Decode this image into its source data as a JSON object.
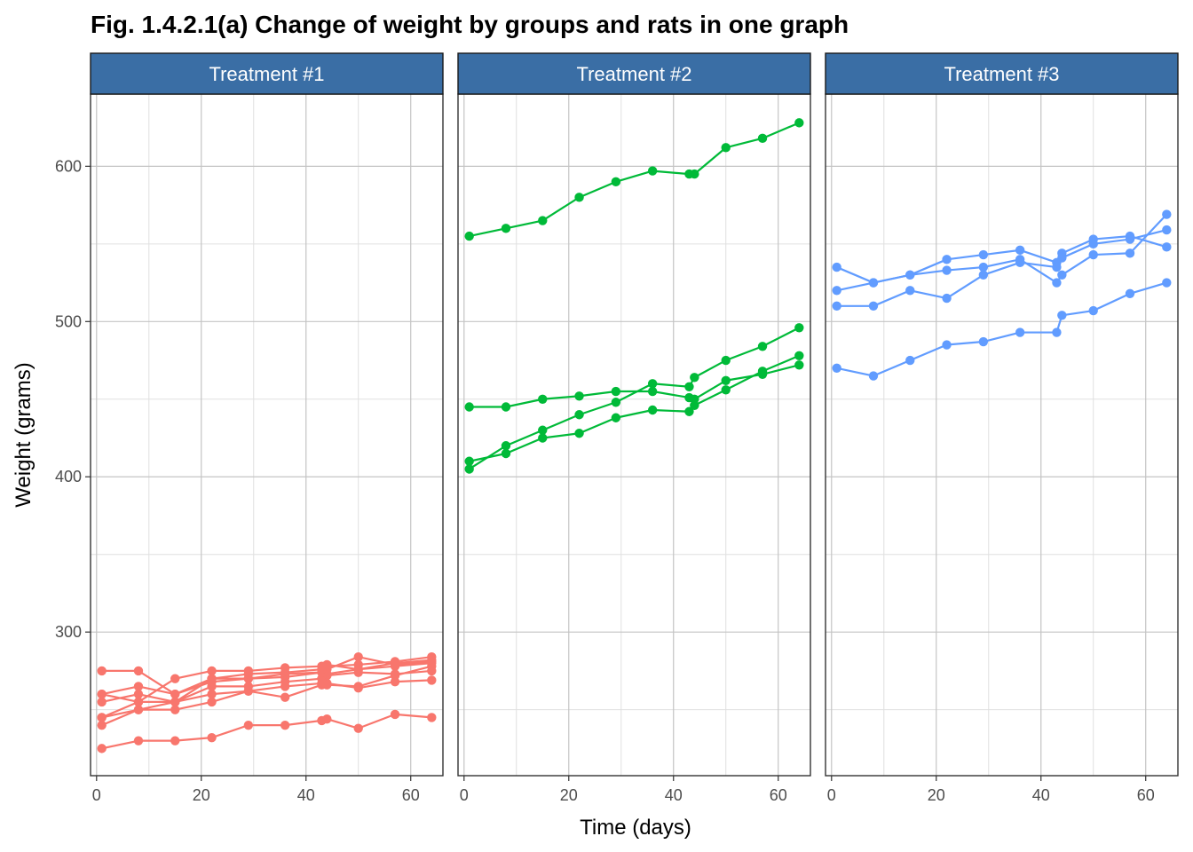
{
  "chart_data": {
    "type": "line",
    "title": "Fig. 1.4.2.1(a) Change of weight by groups and rats in one graph",
    "xlabel": "Time (days)",
    "ylabel": "Weight (grams)",
    "xlim": [
      -1.15,
      66.15
    ],
    "ylim": [
      207.5,
      646.5
    ],
    "x_ticks": [
      0,
      20,
      40,
      60
    ],
    "y_ticks": [
      300,
      400,
      500,
      600
    ],
    "grid": true,
    "legend": "none",
    "x": [
      1,
      8,
      15,
      22,
      29,
      36,
      43,
      44,
      50,
      57,
      64
    ],
    "panels": [
      {
        "name": "Treatment #1",
        "color": "#f8766d",
        "series": [
          {
            "values": [
              240,
              250,
              255,
              260,
              262,
              258,
              266,
              266,
              265,
              272,
              278
            ]
          },
          {
            "values": [
              225,
              230,
              230,
              232,
              240,
              240,
              243,
              244,
              238,
              247,
              245
            ]
          },
          {
            "values": [
              245,
              250,
              250,
              255,
              262,
              265,
              267,
              267,
              264,
              268,
              269
            ]
          },
          {
            "values": [
              260,
              255,
              255,
              265,
              265,
              268,
              270,
              272,
              274,
              273,
              275
            ]
          },
          {
            "values": [
              255,
              260,
              255,
              270,
              270,
              273,
              274,
              273,
              276,
              278,
              280
            ]
          },
          {
            "values": [
              260,
              265,
              260,
              268,
              270,
              271,
              274,
              276,
              284,
              279,
              281
            ]
          },
          {
            "values": [
              275,
              275,
              260,
              270,
              273,
              274,
              276,
              278,
              279,
              281,
              284
            ]
          },
          {
            "values": [
              245,
              255,
              270,
              275,
              275,
              277,
              278,
              279,
              276,
              280,
              282
            ]
          }
        ]
      },
      {
        "name": "Treatment #2",
        "color": "#00ba38",
        "series": [
          {
            "values": [
              410,
              415,
              425,
              428,
              438,
              443,
              442,
              446,
              456,
              468,
              478
            ]
          },
          {
            "values": [
              405,
              420,
              430,
              440,
              448,
              460,
              458,
              464,
              475,
              484,
              496
            ]
          },
          {
            "values": [
              445,
              445,
              450,
              452,
              455,
              455,
              451,
              450,
              462,
              466,
              472
            ]
          },
          {
            "values": [
              555,
              560,
              565,
              580,
              590,
              597,
              595,
              595,
              612,
              618,
              628
            ]
          }
        ]
      },
      {
        "name": "Treatment #3",
        "color": "#619cff",
        "series": [
          {
            "values": [
              470,
              465,
              475,
              485,
              487,
              493,
              493,
              504,
              507,
              518,
              525
            ]
          },
          {
            "values": [
              535,
              525,
              530,
              540,
              543,
              546,
              538,
              544,
              553,
              555,
              548
            ]
          },
          {
            "values": [
              520,
              525,
              530,
              533,
              535,
              540,
              525,
              530,
              543,
              544,
              569
            ]
          },
          {
            "values": [
              510,
              510,
              520,
              515,
              530,
              538,
              535,
              541,
              550,
              553,
              559
            ]
          }
        ]
      }
    ]
  }
}
